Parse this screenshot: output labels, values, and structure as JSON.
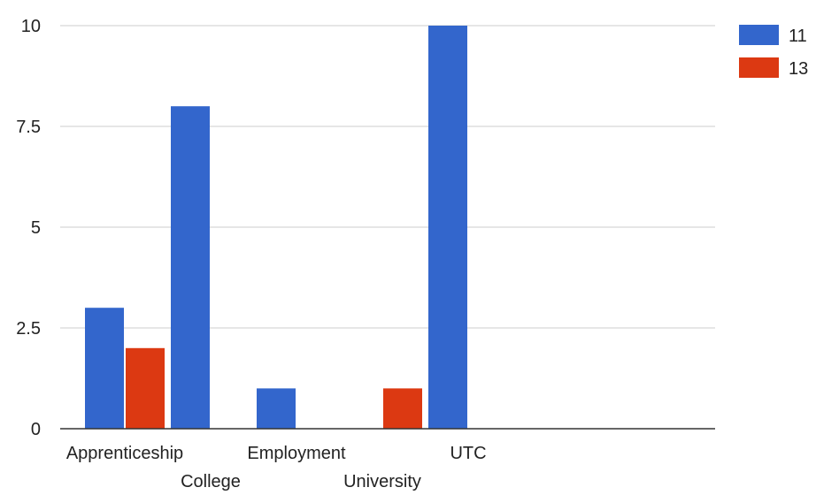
{
  "chart_data": {
    "type": "bar",
    "title": "",
    "xlabel": "",
    "ylabel": "",
    "categories": [
      "Apprenticeship",
      "College",
      "Employment",
      "University",
      "UTC"
    ],
    "series": [
      {
        "name": "11",
        "color": "#3366cc",
        "values": [
          3,
          8,
          1,
          0,
          10
        ]
      },
      {
        "name": "13",
        "color": "#dc3912",
        "values": [
          2,
          0,
          0,
          1,
          0
        ]
      }
    ],
    "ylim": [
      0,
      10
    ],
    "yticks": [
      "0",
      "2.5",
      "5",
      "7.5",
      "10"
    ],
    "grid": true,
    "legend": "top-right"
  }
}
